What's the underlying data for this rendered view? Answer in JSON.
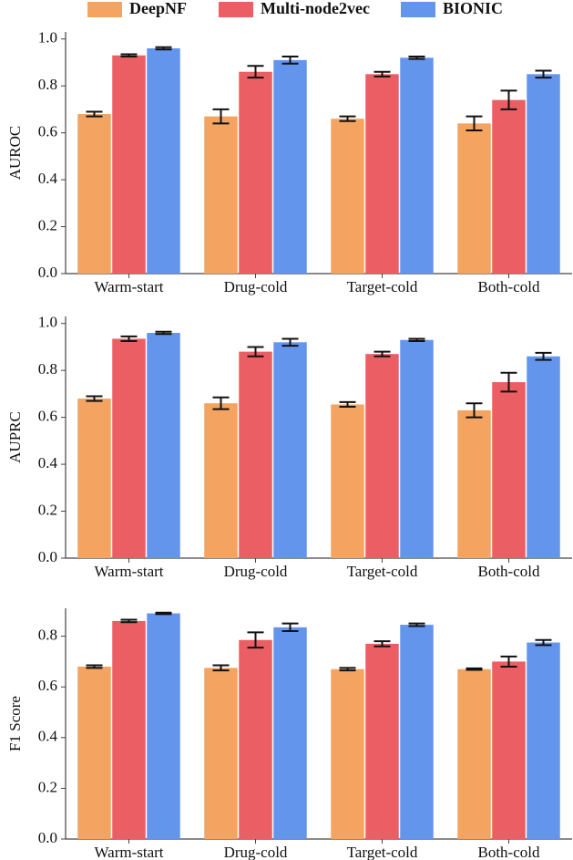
{
  "chart_data": [
    {
      "type": "bar",
      "ylabel": "AUROC",
      "categories": [
        "Warm-start",
        "Drug-cold",
        "Target-cold",
        "Both-cold"
      ],
      "ylim": [
        0,
        1.03
      ],
      "yticks": [
        {
          "value": 0,
          "label": "0.0"
        },
        0.2,
        0.4,
        0.6,
        0.8,
        {
          "value": 1,
          "label": "1.0"
        }
      ],
      "series": [
        {
          "name": "DeepNF",
          "color": "#f4a460",
          "values": [
            0.68,
            0.67,
            0.66,
            0.64
          ],
          "errors": [
            0.01,
            0.03,
            0.01,
            0.03
          ]
        },
        {
          "name": "Multi-node2vec",
          "color": "#eb5f64",
          "values": [
            0.93,
            0.86,
            0.85,
            0.74
          ],
          "errors": [
            0.005,
            0.025,
            0.01,
            0.04
          ]
        },
        {
          "name": "BIONIC",
          "color": "#6495ed",
          "values": [
            0.96,
            0.91,
            0.92,
            0.85
          ],
          "errors": [
            0.005,
            0.015,
            0.005,
            0.015
          ]
        }
      ]
    },
    {
      "type": "bar",
      "ylabel": "AUPRC",
      "categories": [
        "Warm-start",
        "Drug-cold",
        "Target-cold",
        "Both-cold"
      ],
      "ylim": [
        0,
        1.03
      ],
      "yticks": [
        {
          "value": 0,
          "label": "0.0"
        },
        0.2,
        0.4,
        0.6,
        0.8,
        {
          "value": 1,
          "label": "1.0"
        }
      ],
      "series": [
        {
          "color": "#f4a460",
          "values": [
            0.68,
            0.66,
            0.655,
            0.63
          ],
          "errors": [
            0.01,
            0.025,
            0.01,
            0.03
          ]
        },
        {
          "color": "#eb5f64",
          "values": [
            0.935,
            0.88,
            0.87,
            0.75
          ],
          "errors": [
            0.01,
            0.02,
            0.01,
            0.04
          ]
        },
        {
          "color": "#6495ed",
          "values": [
            0.96,
            0.92,
            0.93,
            0.86
          ],
          "errors": [
            0.005,
            0.015,
            0.005,
            0.015
          ]
        }
      ]
    },
    {
      "type": "bar",
      "ylabel": "F1 Score",
      "categories": [
        "Warm-start",
        "Drug-cold",
        "Target-cold",
        "Both-cold"
      ],
      "ylim": [
        0,
        0.91
      ],
      "yticks": [
        {
          "value": 0,
          "label": "0.0"
        },
        0.2,
        0.4,
        0.6,
        0.8
      ],
      "series": [
        {
          "color": "#f4a460",
          "values": [
            0.68,
            0.675,
            0.67,
            0.67
          ],
          "errors": [
            0.005,
            0.01,
            0.005,
            0.003
          ]
        },
        {
          "color": "#eb5f64",
          "values": [
            0.86,
            0.785,
            0.77,
            0.7
          ],
          "errors": [
            0.005,
            0.03,
            0.01,
            0.02
          ]
        },
        {
          "color": "#6495ed",
          "values": [
            0.89,
            0.835,
            0.845,
            0.775
          ],
          "errors": [
            0.003,
            0.015,
            0.005,
            0.01
          ]
        }
      ]
    }
  ]
}
